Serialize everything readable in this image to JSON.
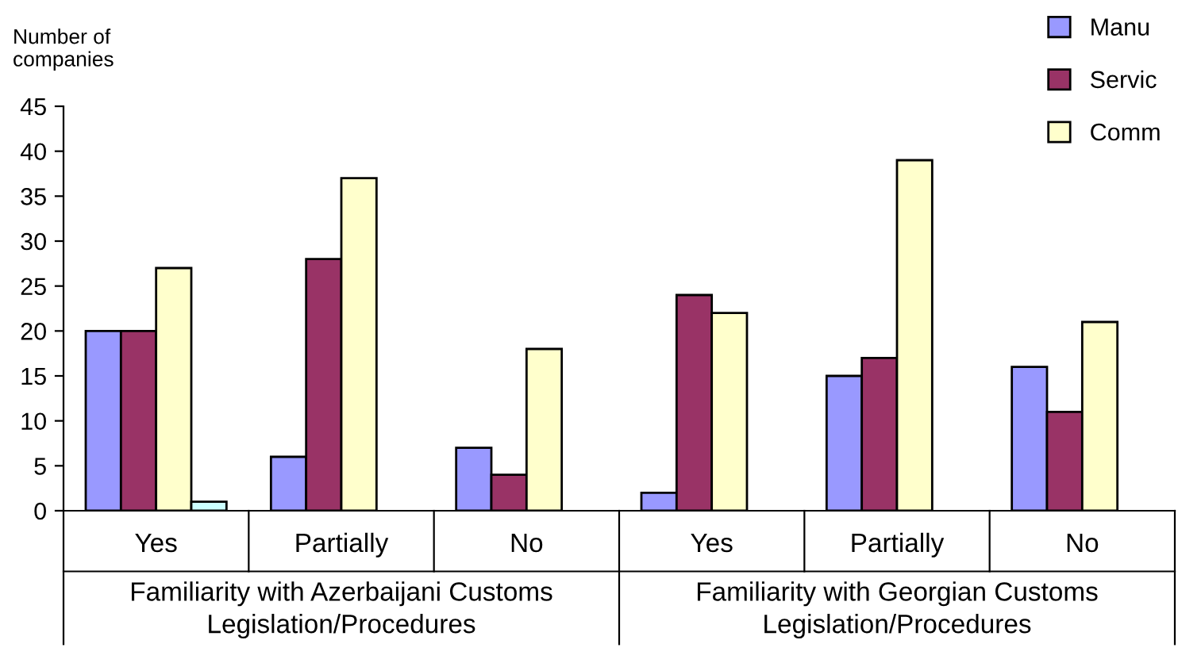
{
  "chart_data": {
    "type": "bar",
    "ylabel": "Number of\ncompanies",
    "categories": [
      "Yes",
      "Partially",
      "No",
      "Yes",
      "Partially",
      "No"
    ],
    "series": [
      {
        "name": "Manu",
        "color": "#9999ff",
        "values": [
          20,
          6,
          7,
          2,
          15,
          16
        ]
      },
      {
        "name": "Servic",
        "color": "#993366",
        "values": [
          20,
          28,
          4,
          24,
          17,
          11
        ]
      },
      {
        "name": "Comm",
        "color": "#ffffcc",
        "values": [
          27,
          37,
          18,
          22,
          39,
          21
        ]
      },
      {
        "color": "#ccffff",
        "values": [
          1,
          null,
          null,
          null,
          null,
          null
        ]
      }
    ],
    "ylim": [
      0,
      45
    ],
    "yticks": [
      0,
      5,
      10,
      15,
      20,
      25,
      30,
      35,
      40,
      45
    ],
    "grid": false,
    "legend": "top right",
    "annotations": [
      "Familiarity with Azerbaijani Customs\nLegislation/Procedures",
      "Familiarity with Georgian Customs\nLegislation/Procedures"
    ]
  }
}
